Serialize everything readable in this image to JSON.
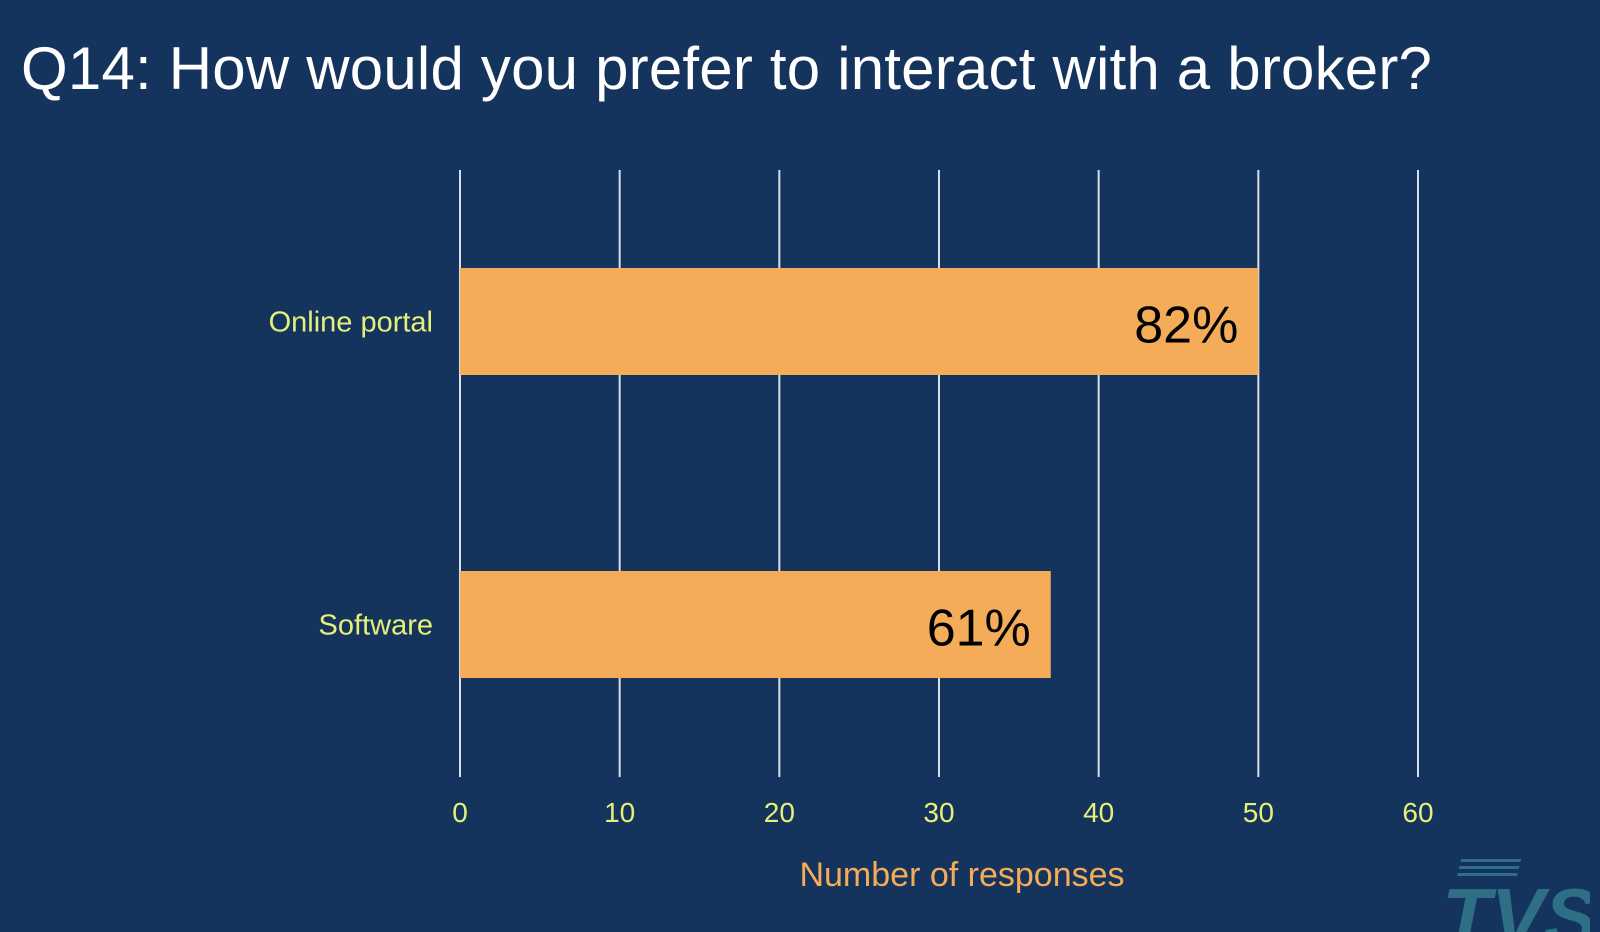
{
  "slide": {
    "title": "Q14: How would you prefer to interact with a broker?"
  },
  "logo": {
    "text": "TVS",
    "color": "#2e6f86"
  },
  "colors": {
    "background": "#15345d",
    "bar": "#f4ac58",
    "category_label": "#e4f07a",
    "tick_label": "#e4f07a",
    "axis_title": "#f4ac58",
    "gridline": "#d8dde6",
    "data_label": "#000000"
  },
  "chart_data": {
    "type": "bar",
    "orientation": "horizontal",
    "categories": [
      "Online portal",
      "Software"
    ],
    "values": [
      50,
      37
    ],
    "data_labels": [
      "82%",
      "61%"
    ],
    "xlabel": "Number of responses",
    "ylabel": "",
    "xlim": [
      0,
      60
    ],
    "xticks": [
      "0",
      "10",
      "20",
      "30",
      "40",
      "50",
      "60"
    ],
    "grid": "vertical",
    "legend": "none"
  }
}
